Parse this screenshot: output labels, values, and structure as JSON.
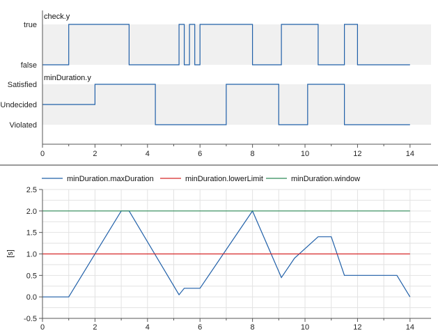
{
  "colors": {
    "series_blue": "#1f5fa8",
    "series_red": "#d62728",
    "series_green": "#2e8b57",
    "band": "#f0f0f0",
    "grid": "#e2e2e2",
    "divider": "#9a9a9a"
  },
  "chart_data": [
    {
      "type": "line",
      "subplots": [
        {
          "label": "check.y",
          "levels": [
            "false",
            "true"
          ],
          "series": [
            {
              "name": "check.y",
              "x": [
                0,
                1,
                1,
                3.3,
                3.3,
                5.2,
                5.2,
                5.4,
                5.4,
                5.6,
                5.6,
                5.8,
                5.8,
                6.0,
                6.0,
                8.0,
                8.0,
                9.1,
                9.1,
                10.5,
                10.5,
                11.5,
                11.5,
                12.0,
                12.0,
                14
              ],
              "y": [
                0,
                0,
                1,
                1,
                0,
                0,
                1,
                1,
                0,
                0,
                1,
                1,
                0,
                0,
                1,
                1,
                0,
                0,
                1,
                1,
                0,
                0,
                1,
                1,
                0,
                0
              ]
            }
          ]
        },
        {
          "label": "minDuration.y",
          "levels": [
            "Violated",
            "Undecided",
            "Satisfied"
          ],
          "series": [
            {
              "name": "minDuration.y",
              "x": [
                0,
                2,
                2,
                4.3,
                4.3,
                7.0,
                7.0,
                9.0,
                9.0,
                10.1,
                10.1,
                11.5,
                11.5,
                14
              ],
              "y": [
                1,
                1,
                2,
                2,
                0,
                0,
                2,
                2,
                0,
                0,
                2,
                2,
                0,
                0
              ]
            }
          ]
        }
      ],
      "x_ticks": [
        0,
        2,
        4,
        6,
        8,
        10,
        12,
        14
      ],
      "xlim": [
        0,
        14.8
      ],
      "grid": false
    },
    {
      "type": "line",
      "ylabel": "[s]",
      "legend_position": "top",
      "x_ticks": [
        0,
        2,
        4,
        6,
        8,
        10,
        12,
        14
      ],
      "y_ticks": [
        -0.5,
        0.0,
        0.5,
        1.0,
        1.5,
        2.0,
        2.5
      ],
      "y_tick_labels": [
        "-0.5",
        "0.0",
        "0.5",
        "1.0",
        "1.5",
        "2.0",
        "2.5"
      ],
      "xlim": [
        0,
        14.8
      ],
      "ylim": [
        -0.5,
        2.5
      ],
      "grid": true,
      "series": [
        {
          "name": "minDuration.maxDuration",
          "color": "#1f5fa8",
          "x": [
            0,
            1.0,
            3.0,
            3.3,
            5.2,
            5.4,
            6.0,
            8.0,
            9.1,
            9.6,
            10.5,
            11.0,
            11.5,
            13.5,
            14.0
          ],
          "y": [
            0,
            0,
            2.0,
            2.0,
            0.05,
            0.2,
            0.2,
            2.0,
            0.45,
            0.9,
            1.4,
            1.4,
            0.5,
            0.5,
            0.0
          ]
        },
        {
          "name": "minDuration.lowerLimit",
          "color": "#d62728",
          "x": [
            0,
            14
          ],
          "y": [
            1.0,
            1.0
          ]
        },
        {
          "name": "minDuration.window",
          "color": "#2e8b57",
          "x": [
            0,
            14
          ],
          "y": [
            2.0,
            2.0
          ]
        }
      ]
    }
  ]
}
